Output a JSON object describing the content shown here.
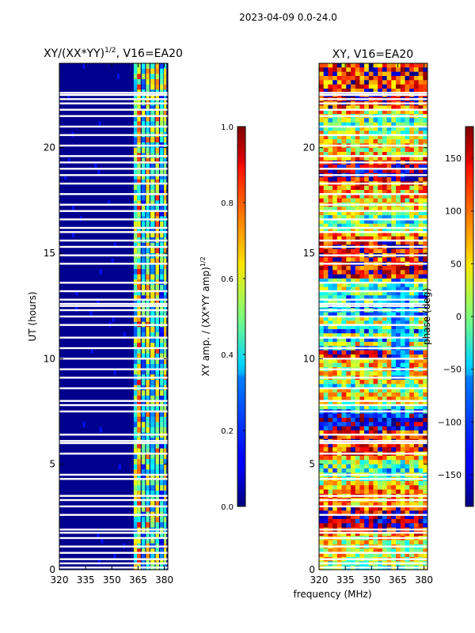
{
  "figure": {
    "suptitle": "2023-04-09 0.0-24.0",
    "xlabel": "frequency (MHz)"
  },
  "chart_data": [
    {
      "type": "heatmap",
      "title": "XY/(XX*YY)^{1/2}, V16=EA20",
      "title_main": "XY/(XX*YY)",
      "title_exp": "1/2",
      "title_suffix": ", V16=EA20",
      "xlabel": "",
      "ylabel": "UT (hours)",
      "xlim": [
        320,
        382
      ],
      "ylim": [
        0,
        24
      ],
      "xticks": [
        320,
        335,
        350,
        365,
        380
      ],
      "yticks": [
        0,
        5,
        10,
        15,
        20
      ],
      "colorbar": {
        "label": "XY amp. / (XX*YY amp)^{1/2}",
        "label_main": "XY amp. / (XX*YY amp)",
        "label_exp": "1/2",
        "range": [
          0,
          1
        ],
        "ticks": [
          0.0,
          0.2,
          0.4,
          0.6,
          0.8,
          1.0
        ],
        "tick_labels": [
          "0.0",
          "0.2",
          "0.4",
          "0.6",
          "0.8",
          "1.0"
        ]
      }
    },
    {
      "type": "heatmap",
      "title": "XY, V16=EA20",
      "xlabel": "",
      "ylabel": "",
      "xlim": [
        320,
        382
      ],
      "ylim": [
        0,
        24
      ],
      "xticks": [
        320,
        335,
        350,
        365,
        380
      ],
      "yticks": [
        0,
        5,
        10,
        15,
        20
      ],
      "colorbar": {
        "label": "phase (deg)",
        "range": [
          -180,
          180
        ],
        "ticks": [
          -150,
          -100,
          -50,
          0,
          50,
          100,
          150
        ],
        "tick_labels": [
          "−150",
          "−100",
          "−50",
          "0",
          "50",
          "100",
          "150"
        ]
      }
    }
  ],
  "flagged_gaps_hours": [
    0.1,
    0.3,
    0.5,
    0.8,
    1.1,
    1.5,
    1.75,
    1.9,
    2.6,
    3.0,
    3.3,
    3.5,
    4.3,
    4.5,
    5.5,
    6.0,
    6.1,
    6.4,
    7.5,
    7.8,
    8.0,
    8.6,
    9.1,
    9.5,
    10.0,
    10.5,
    11.0,
    11.6,
    12.0,
    12.3,
    12.5,
    12.6,
    12.8,
    13.2,
    13.6,
    14.5,
    14.9,
    15.3,
    15.6,
    16.0,
    16.2,
    16.6,
    17.0,
    17.3,
    17.8,
    18.3,
    18.7,
    19.0,
    19.3,
    19.6,
    20.1,
    20.6,
    21.0,
    21.5,
    21.8,
    22.1,
    22.3,
    22.5,
    22.6
  ]
}
